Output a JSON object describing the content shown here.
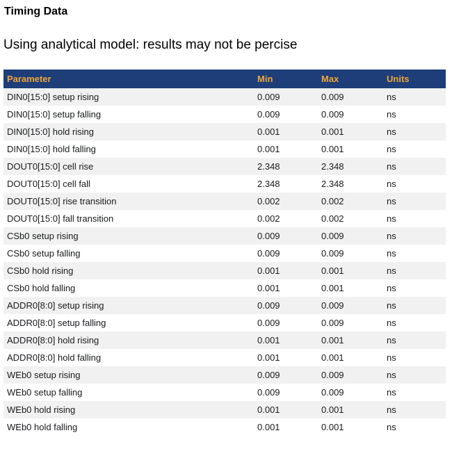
{
  "page": {
    "title": "Timing Data",
    "subtitle": "Using analytical model: results may not be percise"
  },
  "colors": {
    "header_bg": "#1d3e78",
    "header_text": "#f0a63c",
    "row_alt_bg": "#f1f1f1",
    "row_text": "#17191c"
  },
  "table": {
    "columns": [
      "Parameter",
      "Min",
      "Max",
      "Units"
    ],
    "rows": [
      {
        "parameter": "DIN0[15:0] setup rising",
        "min": "0.009",
        "max": "0.009",
        "units": "ns"
      },
      {
        "parameter": "DIN0[15:0] setup falling",
        "min": "0.009",
        "max": "0.009",
        "units": "ns"
      },
      {
        "parameter": "DIN0[15:0] hold rising",
        "min": "0.001",
        "max": "0.001",
        "units": "ns"
      },
      {
        "parameter": "DIN0[15:0] hold falling",
        "min": "0.001",
        "max": "0.001",
        "units": "ns"
      },
      {
        "parameter": "DOUT0[15:0] cell rise",
        "min": "2.348",
        "max": "2.348",
        "units": "ns"
      },
      {
        "parameter": "DOUT0[15:0] cell fall",
        "min": "2.348",
        "max": "2.348",
        "units": "ns"
      },
      {
        "parameter": "DOUT0[15:0] rise transition",
        "min": "0.002",
        "max": "0.002",
        "units": "ns"
      },
      {
        "parameter": "DOUT0[15:0] fall transition",
        "min": "0.002",
        "max": "0.002",
        "units": "ns"
      },
      {
        "parameter": "CSb0 setup rising",
        "min": "0.009",
        "max": "0.009",
        "units": "ns"
      },
      {
        "parameter": "CSb0 setup falling",
        "min": "0.009",
        "max": "0.009",
        "units": "ns"
      },
      {
        "parameter": "CSb0 hold rising",
        "min": "0.001",
        "max": "0.001",
        "units": "ns"
      },
      {
        "parameter": "CSb0 hold falling",
        "min": "0.001",
        "max": "0.001",
        "units": "ns"
      },
      {
        "parameter": "ADDR0[8:0] setup rising",
        "min": "0.009",
        "max": "0.009",
        "units": "ns"
      },
      {
        "parameter": "ADDR0[8:0] setup falling",
        "min": "0.009",
        "max": "0.009",
        "units": "ns"
      },
      {
        "parameter": "ADDR0[8:0] hold rising",
        "min": "0.001",
        "max": "0.001",
        "units": "ns"
      },
      {
        "parameter": "ADDR0[8:0] hold falling",
        "min": "0.001",
        "max": "0.001",
        "units": "ns"
      },
      {
        "parameter": "WEb0 setup rising",
        "min": "0.009",
        "max": "0.009",
        "units": "ns"
      },
      {
        "parameter": "WEb0 setup falling",
        "min": "0.009",
        "max": "0.009",
        "units": "ns"
      },
      {
        "parameter": "WEb0 hold rising",
        "min": "0.001",
        "max": "0.001",
        "units": "ns"
      },
      {
        "parameter": "WEb0 hold falling",
        "min": "0.001",
        "max": "0.001",
        "units": "ns"
      }
    ]
  }
}
